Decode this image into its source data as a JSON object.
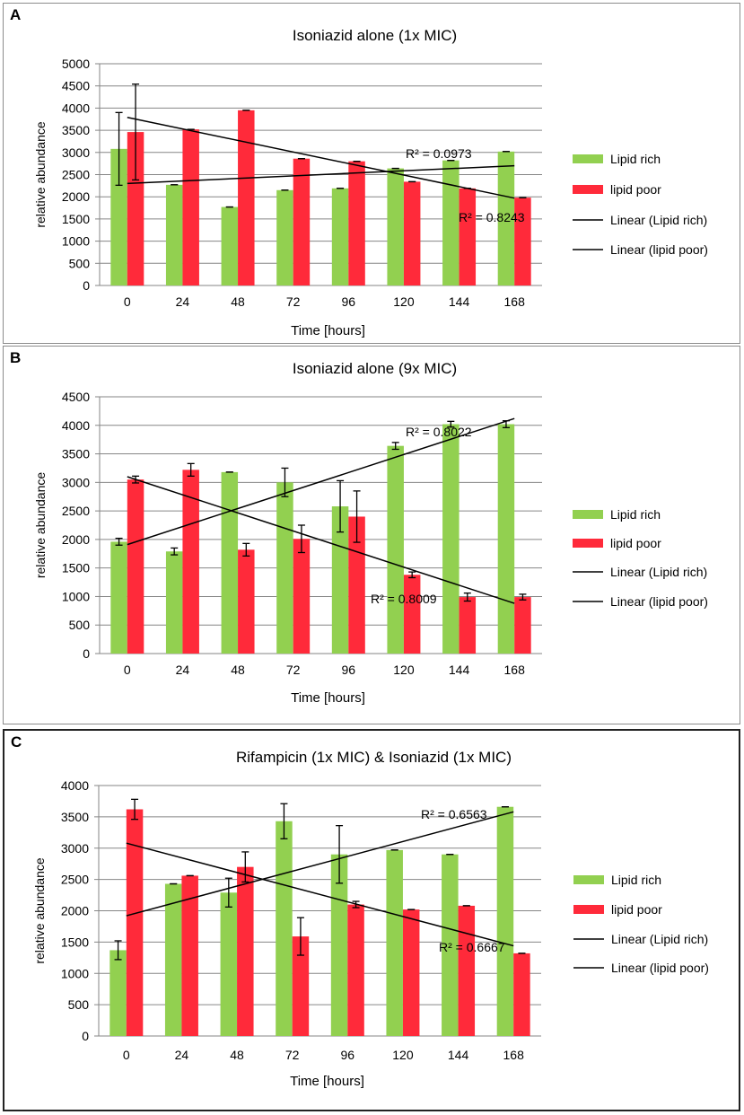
{
  "colors": {
    "lipid_rich": "#92d050",
    "lipid_poor": "#ff2a3a",
    "grid": "#868686",
    "trend": "#000000"
  },
  "chart_data": [
    {
      "panel_label": "A",
      "type": "bar",
      "title": "Isoniazid alone (1x MIC)",
      "xlabel": "Time [hours]",
      "ylabel": "relative abundance",
      "ylim": [
        0,
        5000
      ],
      "yticks": [
        "0",
        "500",
        "1000",
        "1500",
        "2000",
        "2500",
        "3000",
        "3500",
        "4000",
        "4500",
        "5000"
      ],
      "categories": [
        "0",
        "24",
        "48",
        "72",
        "96",
        "120",
        "144",
        "168"
      ],
      "series": [
        {
          "name": "Lipid rich",
          "values": [
            3080,
            2270,
            1770,
            2150,
            2190,
            2640,
            2820,
            3020
          ],
          "errors": [
            820,
            0,
            0,
            0,
            0,
            0,
            0,
            0
          ]
        },
        {
          "name": "lipid poor",
          "values": [
            3460,
            3520,
            3950,
            2860,
            2800,
            2340,
            2190,
            1980
          ],
          "errors": [
            1080,
            0,
            0,
            0,
            0,
            0,
            0,
            0
          ]
        }
      ],
      "trendlines": [
        {
          "name": "Linear (Lipid rich)",
          "start": 2300,
          "end": 2700,
          "r2_label": "R² = 0.0973"
        },
        {
          "name": "Linear (lipid poor)",
          "start": 3790,
          "end": 1970,
          "r2_label": "R² = 0.8243"
        }
      ]
    },
    {
      "panel_label": "B",
      "type": "bar",
      "title": "Isoniazid alone (9x MIC)",
      "xlabel": "Time [hours]",
      "ylabel": "relative abundance",
      "ylim": [
        0,
        4500
      ],
      "yticks": [
        "0",
        "500",
        "1000",
        "1500",
        "2000",
        "2500",
        "3000",
        "3500",
        "4000",
        "4500"
      ],
      "categories": [
        "0",
        "24",
        "48",
        "72",
        "96",
        "120",
        "144",
        "168"
      ],
      "series": [
        {
          "name": "Lipid rich",
          "values": [
            1960,
            1790,
            3180,
            3000,
            2580,
            3640,
            4020,
            4020
          ],
          "errors": [
            60,
            60,
            0,
            250,
            450,
            60,
            50,
            60
          ]
        },
        {
          "name": "lipid poor",
          "values": [
            3050,
            3220,
            1820,
            2010,
            2400,
            1380,
            990,
            990
          ],
          "errors": [
            60,
            110,
            110,
            240,
            450,
            50,
            70,
            50
          ]
        }
      ],
      "trendlines": [
        {
          "name": "Linear (Lipid rich)",
          "start": 1910,
          "end": 4120,
          "r2_label": "R² = 0.8022"
        },
        {
          "name": "Linear (lipid poor)",
          "start": 3100,
          "end": 880,
          "r2_label": "R² = 0.8009"
        }
      ]
    },
    {
      "panel_label": "C",
      "type": "bar",
      "title": "Rifampicin (1x MIC) & Isoniazid (1x MIC)",
      "xlabel": "Time [hours]",
      "ylabel": "relative abundance",
      "ylim": [
        0,
        4000
      ],
      "yticks": [
        "0",
        "500",
        "1000",
        "1500",
        "2000",
        "2500",
        "3000",
        "3500",
        "4000"
      ],
      "categories": [
        "0",
        "24",
        "48",
        "72",
        "96",
        "120",
        "144",
        "168"
      ],
      "series": [
        {
          "name": "Lipid rich",
          "values": [
            1370,
            2430,
            2290,
            3430,
            2900,
            2970,
            2900,
            3660
          ],
          "errors": [
            150,
            0,
            230,
            280,
            460,
            0,
            0,
            0
          ]
        },
        {
          "name": "lipid poor",
          "values": [
            3620,
            2560,
            2700,
            1590,
            2100,
            2020,
            2080,
            1320
          ],
          "errors": [
            160,
            0,
            240,
            300,
            50,
            0,
            0,
            0
          ]
        }
      ],
      "trendlines": [
        {
          "name": "Linear (Lipid rich)",
          "start": 1920,
          "end": 3580,
          "r2_label": "R² = 0.6563"
        },
        {
          "name": "Linear (lipid poor)",
          "start": 3080,
          "end": 1440,
          "r2_label": "R² = 0.6667"
        }
      ]
    }
  ]
}
